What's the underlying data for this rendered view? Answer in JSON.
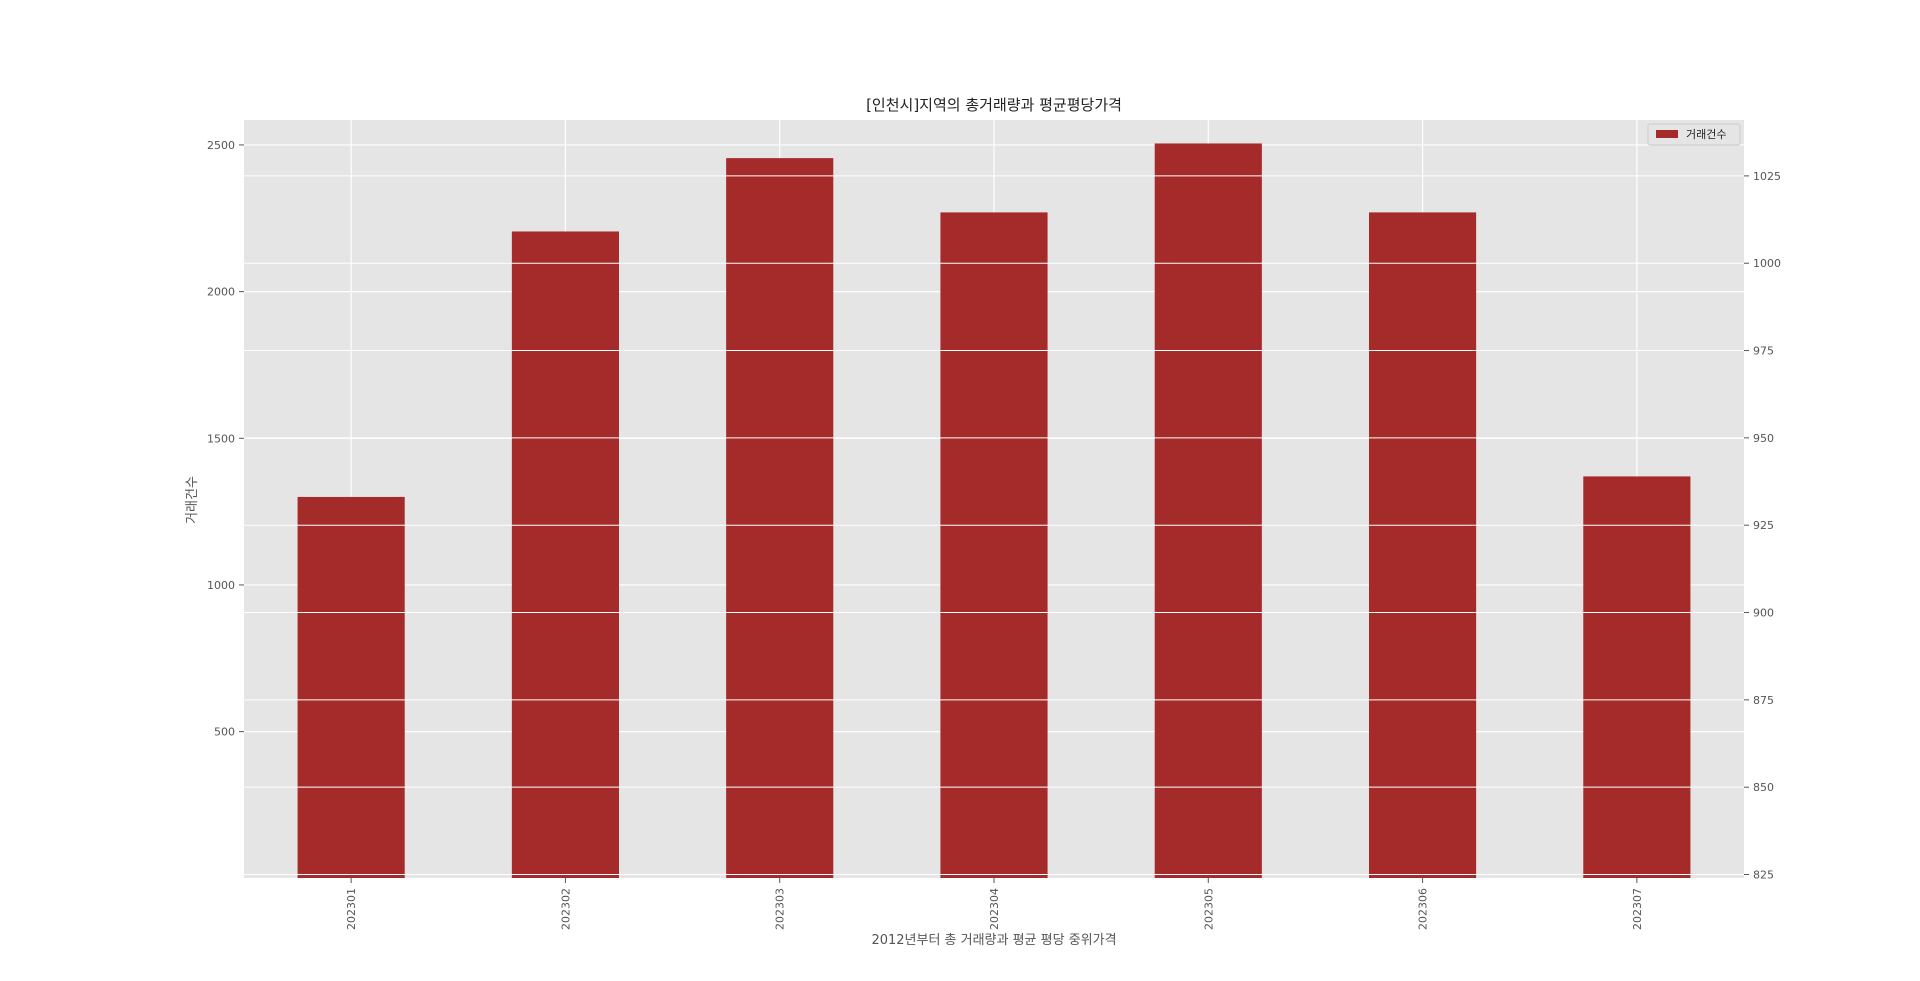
{
  "chart_data": {
    "type": "bar",
    "title": "[인천시]지역의 총거래량과 평균평당가격",
    "xlabel": "2012년부터 총 거래량과 평균 평당 중위가격",
    "ylabel": "거래건수",
    "categories": [
      "202301",
      "202302",
      "202303",
      "202304",
      "202305",
      "202306",
      "202307"
    ],
    "series": [
      {
        "name": "거래건수",
        "values": [
          1300,
          2205,
          2455,
          2270,
          2505,
          2270,
          1370
        ],
        "color": "#a52a2a"
      }
    ],
    "ylim": [
      1,
      2585
    ],
    "yticks": [
      "500",
      "1000",
      "1500",
      "2000",
      "2500"
    ],
    "y2lim": [
      824,
      1041
    ],
    "y2ticks": [
      "825",
      "850",
      "875",
      "900",
      "925",
      "950",
      "975",
      "1000",
      "1025"
    ],
    "grid": true,
    "legend_position": "top-right",
    "background_color": "#e5e5e5",
    "grid_color": "#ffffff"
  }
}
